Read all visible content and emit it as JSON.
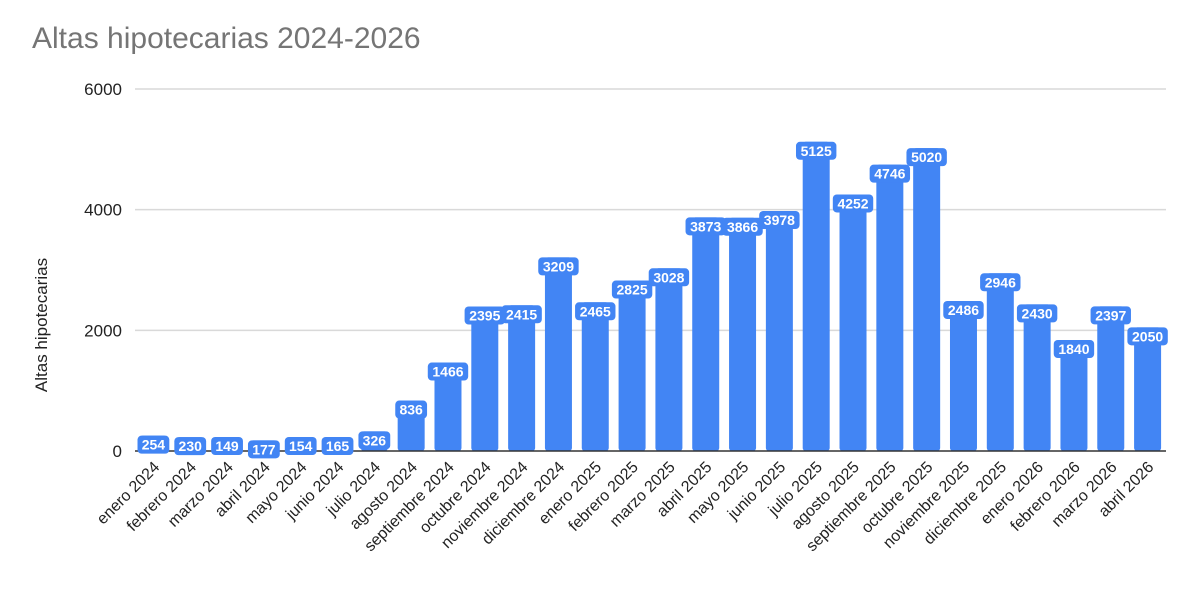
{
  "chart_data": {
    "type": "bar",
    "title": "Altas hipotecarias 2024-2026",
    "xlabel": "",
    "ylabel": "Altas hipotecarias",
    "ylim": [
      0,
      6000
    ],
    "yticks": [
      0,
      2000,
      4000,
      6000
    ],
    "grid": true,
    "bar_color": "#4285f4",
    "categories": [
      "enero 2024",
      "febrero 2024",
      "marzo 2024",
      "abril 2024",
      "mayo 2024",
      "junio 2024",
      "julio 2024",
      "agosto 2024",
      "septiembre 2024",
      "octubre 2024",
      "noviembre 2024",
      "diciembre 2024",
      "enero 2025",
      "febrero 2025",
      "marzo 2025",
      "abril 2025",
      "mayo 2025",
      "junio 2025",
      "julio 2025",
      "agosto 2025",
      "septiembre 2025",
      "octubre 2025",
      "noviembre 2025",
      "diciembre 2025",
      "enero 2026",
      "febrero 2026",
      "marzo 2026",
      "abril 2026"
    ],
    "values": [
      254,
      230,
      149,
      177,
      154,
      165,
      326,
      836,
      1466,
      2395,
      2415,
      3209,
      2465,
      2825,
      3028,
      3873,
      3866,
      3978,
      5125,
      4252,
      4746,
      5020,
      2486,
      2946,
      2430,
      1840,
      2397,
      2050
    ]
  }
}
